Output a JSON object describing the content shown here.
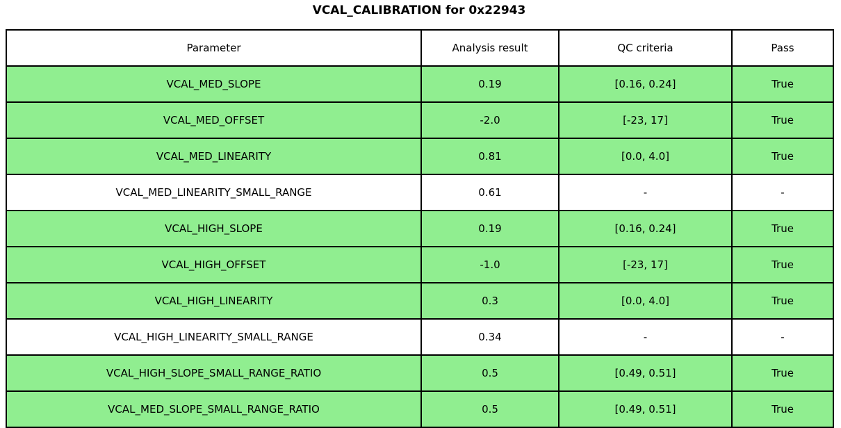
{
  "title": "VCAL_CALIBRATION for 0x22943",
  "chart_data": {
    "type": "table",
    "title": "VCAL_CALIBRATION for 0x22943",
    "columns": [
      "Parameter",
      "Analysis result",
      "QC criteria",
      "Pass"
    ],
    "rows": [
      {
        "parameter": "VCAL_MED_SLOPE",
        "result": "0.19",
        "criteria": "[0.16, 0.24]",
        "pass": "True",
        "highlighted": true
      },
      {
        "parameter": "VCAL_MED_OFFSET",
        "result": "-2.0",
        "criteria": "[-23, 17]",
        "pass": "True",
        "highlighted": true
      },
      {
        "parameter": "VCAL_MED_LINEARITY",
        "result": "0.81",
        "criteria": "[0.0, 4.0]",
        "pass": "True",
        "highlighted": true
      },
      {
        "parameter": "VCAL_MED_LINEARITY_SMALL_RANGE",
        "result": "0.61",
        "criteria": "-",
        "pass": "-",
        "highlighted": false
      },
      {
        "parameter": "VCAL_HIGH_SLOPE",
        "result": "0.19",
        "criteria": "[0.16, 0.24]",
        "pass": "True",
        "highlighted": true
      },
      {
        "parameter": "VCAL_HIGH_OFFSET",
        "result": "-1.0",
        "criteria": "[-23, 17]",
        "pass": "True",
        "highlighted": true
      },
      {
        "parameter": "VCAL_HIGH_LINEARITY",
        "result": "0.3",
        "criteria": "[0.0, 4.0]",
        "pass": "True",
        "highlighted": true
      },
      {
        "parameter": "VCAL_HIGH_LINEARITY_SMALL_RANGE",
        "result": "0.34",
        "criteria": "-",
        "pass": "-",
        "highlighted": false
      },
      {
        "parameter": "VCAL_HIGH_SLOPE_SMALL_RANGE_RATIO",
        "result": "0.5",
        "criteria": "[0.49, 0.51]",
        "pass": "True",
        "highlighted": true
      },
      {
        "parameter": "VCAL_MED_SLOPE_SMALL_RANGE_RATIO",
        "result": "0.5",
        "criteria": "[0.49, 0.51]",
        "pass": "True",
        "highlighted": true
      }
    ]
  },
  "colors": {
    "pass_row_bg": "#90ee90",
    "default_row_bg": "#ffffff",
    "border": "#000000",
    "text": "#000000"
  }
}
